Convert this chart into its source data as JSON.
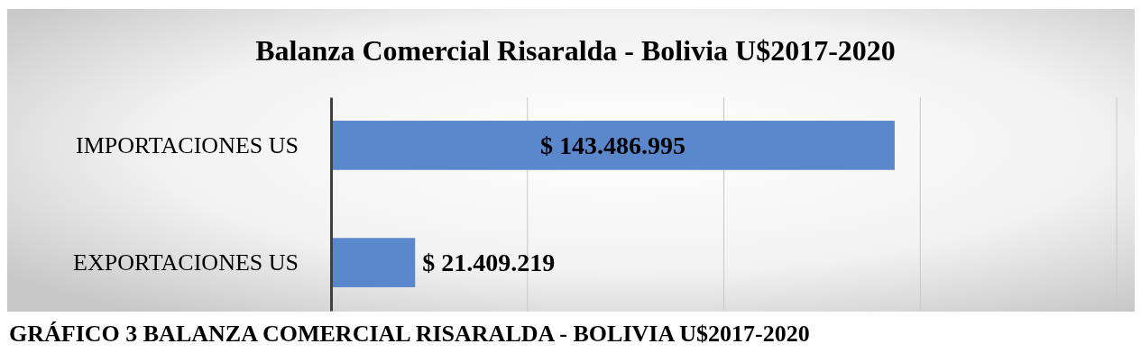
{
  "chart_data": {
    "type": "bar",
    "orientation": "horizontal",
    "title": "Balanza Comercial Risaralda - Bolivia U$2017-2020",
    "categories": [
      "IMPORTACIONES US",
      "EXPORTACIONES US"
    ],
    "values": [
      143486995,
      21409219
    ],
    "value_labels": [
      "$ 143.486.995",
      "$ 21.409.219"
    ],
    "color": "#5b87cc",
    "xlim": [
      0,
      200000000
    ],
    "xticks": [
      {
        "value": 0,
        "label": null
      },
      {
        "value": 50000000,
        "label": null
      },
      {
        "value": 100000000,
        "label": null
      },
      {
        "value": 150000000,
        "label": null
      },
      {
        "value": 200000000,
        "label": null
      }
    ],
    "tick_labels": "y",
    "grid": "x",
    "annotations": [
      "GRÁFICO 3 BALANZA COMERCIAL RISARALDA - BOLIVIA U$2017-2020"
    ]
  }
}
